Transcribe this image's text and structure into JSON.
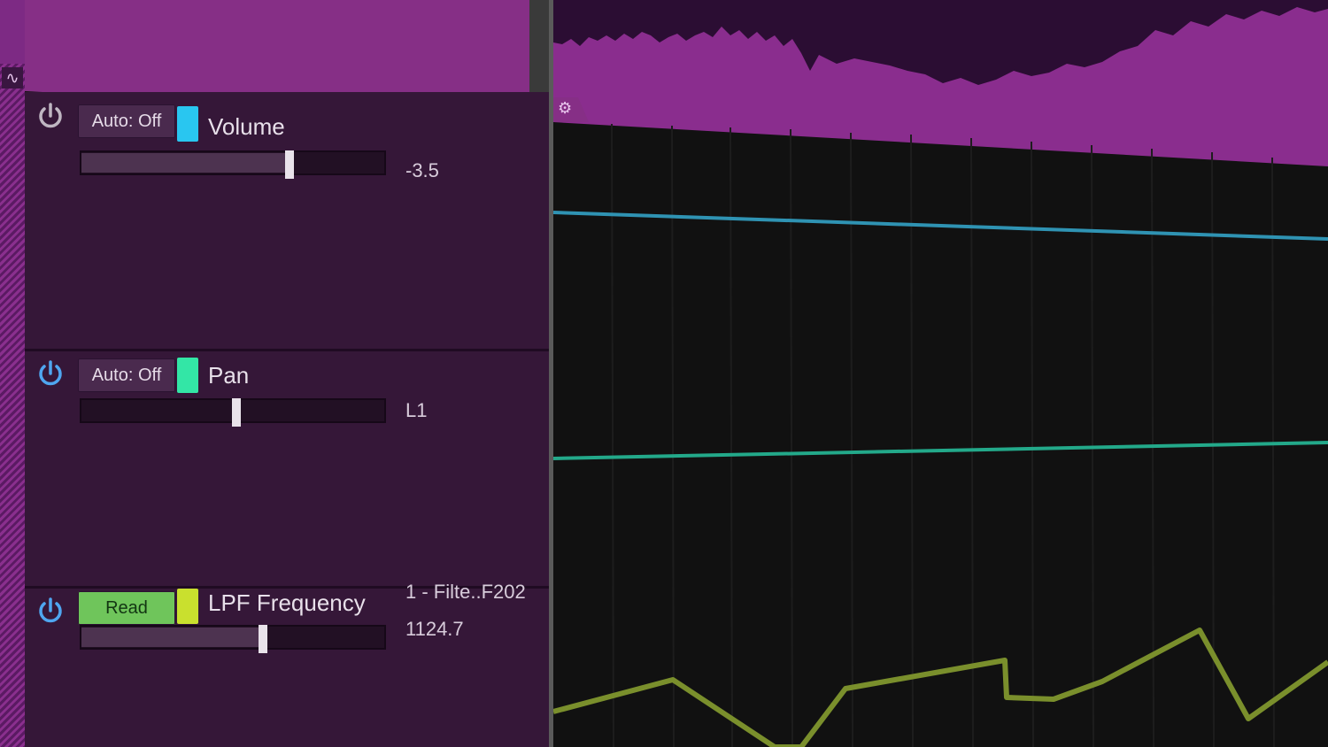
{
  "left_strip": {
    "wave_icon": "∿"
  },
  "lanes": [
    {
      "auto_label": "Auto: Off",
      "name": "Volume",
      "value": "-3.5",
      "chip_color": "#29c6f0",
      "power_color": "#bfb6c2",
      "slider_level": 0.69,
      "line_color": "#2f93b3"
    },
    {
      "auto_label": "Auto: Off",
      "name": "Pan",
      "value": "L1",
      "chip_color": "#33e6a6",
      "power_color": "#4fa6f0",
      "slider_level": 0.5,
      "line_color": "#23a98a"
    },
    {
      "auto_label": "Read",
      "name": "LPF Frequency",
      "plugin": "1 - Filte..F202",
      "value": "1124.7",
      "chip_color": "#c9e02e",
      "power_color": "#4fa6f0",
      "slider_level": 0.6,
      "line_color": "#7a8f2c"
    }
  ],
  "colors": {
    "track_purple": "#862f86",
    "waveform_dark": "#2b0d33",
    "lane_bg": "#351738",
    "grid_bg": "#111111"
  },
  "gear_icon": "⚙"
}
